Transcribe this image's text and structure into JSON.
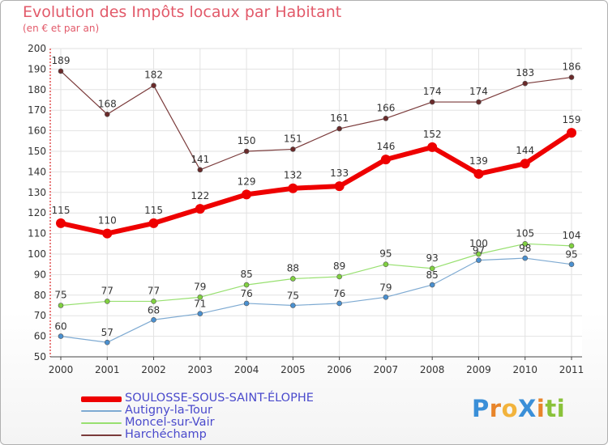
{
  "title": "Evolution des Impôts locaux par Habitant",
  "subtitle": "(en € et par an)",
  "logo": {
    "text": "ProXiti",
    "letters": [
      "P",
      "r",
      "o",
      "X",
      "i",
      "t",
      "i"
    ],
    "colors": [
      "#3a8fd8",
      "#e8852a",
      "#f2b33c",
      "#3a8fd8",
      "#e8852a",
      "#8ac23a",
      "#8ac23a"
    ]
  },
  "chart_data": {
    "type": "line",
    "title": "Evolution des Impôts locaux par Habitant",
    "ylabel": "(en € et par an)",
    "xlabel": "",
    "x": [
      "2000",
      "2001",
      "2002",
      "2003",
      "2004",
      "2005",
      "2006",
      "2007",
      "2008",
      "2009",
      "2010",
      "2011"
    ],
    "ylim": [
      50,
      200
    ],
    "yticks": [
      50,
      60,
      70,
      80,
      90,
      100,
      110,
      120,
      130,
      140,
      150,
      160,
      170,
      180,
      190,
      200
    ],
    "grid": true,
    "series": [
      {
        "name": "SOULOSSE-SOUS-SAINT-ÉLOPHE",
        "color": "#ee0000",
        "marker": "#ee0000",
        "width": 6,
        "r": 6,
        "values": [
          115,
          110,
          115,
          122,
          129,
          132,
          133,
          146,
          152,
          139,
          144,
          159
        ]
      },
      {
        "name": "Autigny-la-Tour",
        "color": "#7eaad2",
        "marker": "#4a90d0",
        "width": 1.2,
        "r": 3,
        "values": [
          60,
          57,
          68,
          71,
          76,
          75,
          76,
          79,
          85,
          97,
          98,
          95
        ]
      },
      {
        "name": "Moncel-sur-Vair",
        "color": "#98e070",
        "marker": "#80d040",
        "width": 1.2,
        "r": 3,
        "values": [
          75,
          77,
          77,
          79,
          85,
          88,
          89,
          95,
          93,
          100,
          105,
          104
        ]
      },
      {
        "name": "Harchéchamp",
        "color": "#7a3a3a",
        "marker": "#6a2a2a",
        "width": 1.2,
        "r": 3,
        "values": [
          189,
          168,
          182,
          141,
          150,
          151,
          161,
          166,
          174,
          174,
          183,
          186
        ]
      }
    ],
    "legend": "bottom-left"
  }
}
